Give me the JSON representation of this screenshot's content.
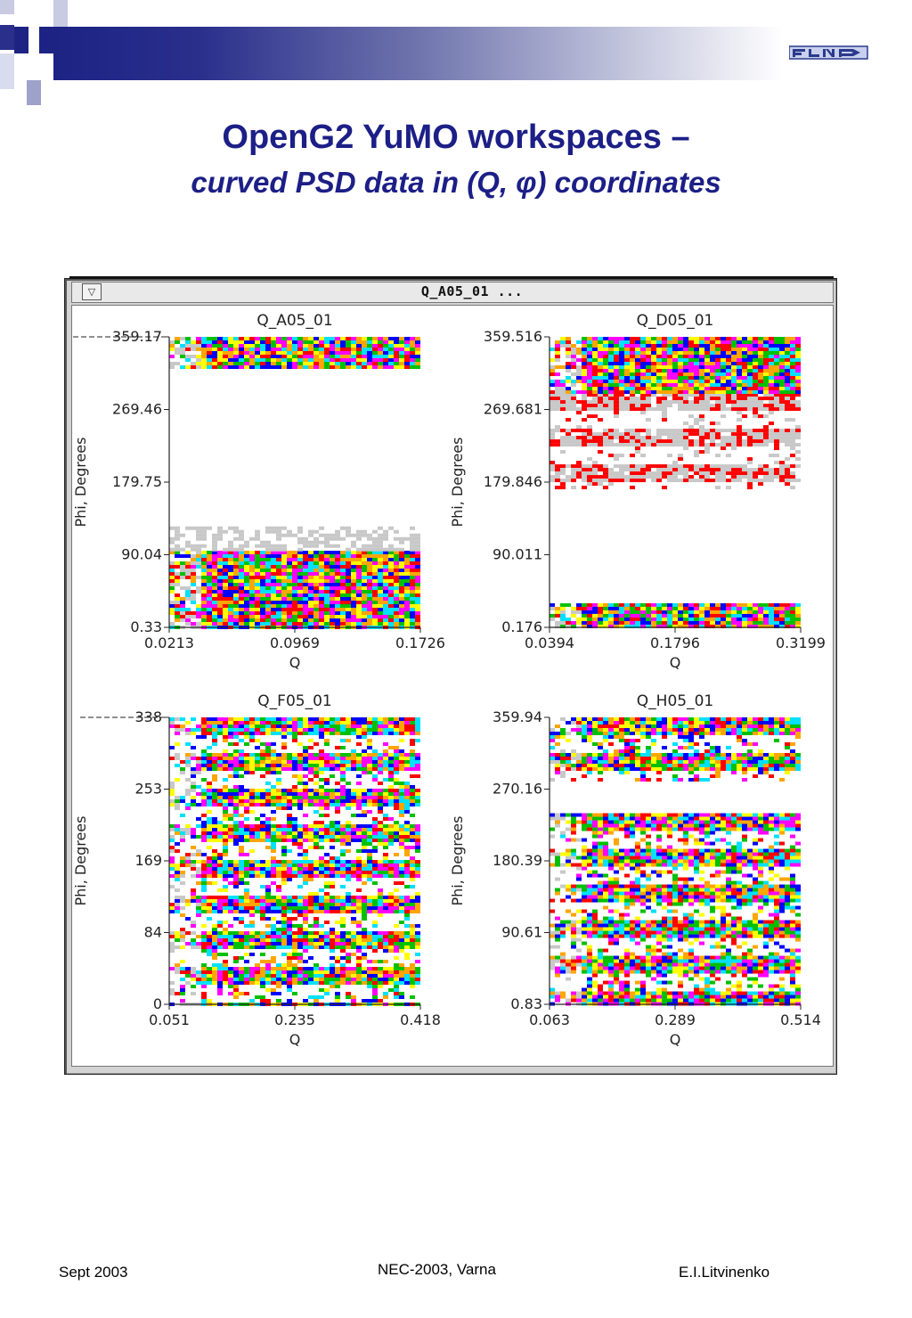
{
  "slide": {
    "title": "OpenG2 YuMO workspaces –",
    "subtitle": "curved PSD data in (Q, φ) coordinates",
    "logo_icon": "flnp-logo-icon"
  },
  "window": {
    "title": "Q_A05_01 ...",
    "menu_icon": "triangle-down-icon"
  },
  "colors": {
    "title_blue": "#1c1f86",
    "header_band": "#1c2383",
    "map_colors": [
      "#ff0000",
      "#00c000",
      "#0000ff",
      "#00e0ff",
      "#ff00ff",
      "#ffff00",
      "#ffa500",
      "#c8c8c8"
    ]
  },
  "chart_data": [
    {
      "type": "heatmap",
      "title": "Q_A05_01",
      "xlabel": "Q",
      "ylabel": "Phi, Degrees",
      "xticks": [
        "0.0213",
        "0.0969",
        "0.1726"
      ],
      "yticks": [
        "0.33",
        "90.04",
        "179.75",
        "269.46",
        "359.17"
      ],
      "xlim": [
        0.0213,
        0.1726
      ],
      "ylim": [
        0.33,
        359.17
      ],
      "bands": [
        {
          "phi": [
            0.33,
            95
          ],
          "style": "dense"
        },
        {
          "phi": [
            95,
            125
          ],
          "style": "grey"
        },
        {
          "phi": [
            320,
            359.17
          ],
          "style": "dense"
        }
      ]
    },
    {
      "type": "heatmap",
      "title": "Q_D05_01",
      "xlabel": "Q",
      "ylabel": "Phi, Degrees",
      "xticks": [
        "0.0394",
        "0.1796",
        "0.3199"
      ],
      "yticks": [
        "0.176",
        "90.011",
        "179.846",
        "269.681",
        "359.516"
      ],
      "xlim": [
        0.0394,
        0.3199
      ],
      "ylim": [
        0.176,
        359.516
      ],
      "bands": [
        {
          "phi": [
            0.176,
            30
          ],
          "style": "dense"
        },
        {
          "phi": [
            175,
            290
          ],
          "style": "striped"
        },
        {
          "phi": [
            290,
            359.516
          ],
          "style": "dense"
        }
      ]
    },
    {
      "type": "heatmap",
      "title": "Q_F05_01",
      "xlabel": "Q",
      "ylabel": "Phi, Degrees",
      "xticks": [
        "0.051",
        "0.235",
        "0.418"
      ],
      "yticks": [
        "0",
        "84",
        "169",
        "253",
        "338"
      ],
      "xlim": [
        0.051,
        0.418
      ],
      "ylim": [
        0,
        338
      ],
      "bands": [
        {
          "phi": [
            0,
            338
          ],
          "style": "striped-dense"
        }
      ]
    },
    {
      "type": "heatmap",
      "title": "Q_H05_01",
      "xlabel": "Q",
      "ylabel": "Phi, Degrees",
      "xticks": [
        "0.063",
        "0.289",
        "0.514"
      ],
      "yticks": [
        "0.83",
        "90.61",
        "180.39",
        "270.16",
        "359.94"
      ],
      "xlim": [
        0.063,
        0.514
      ],
      "ylim": [
        0.83,
        359.94
      ],
      "bands": [
        {
          "phi": [
            0.83,
            240
          ],
          "style": "striped-dense"
        },
        {
          "phi": [
            280,
            359.94
          ],
          "style": "striped-dense"
        }
      ]
    }
  ],
  "footer": {
    "date": "Sept 2003",
    "conference": "NEC-2003, Varna",
    "author": "E.I.Litvinenko"
  }
}
